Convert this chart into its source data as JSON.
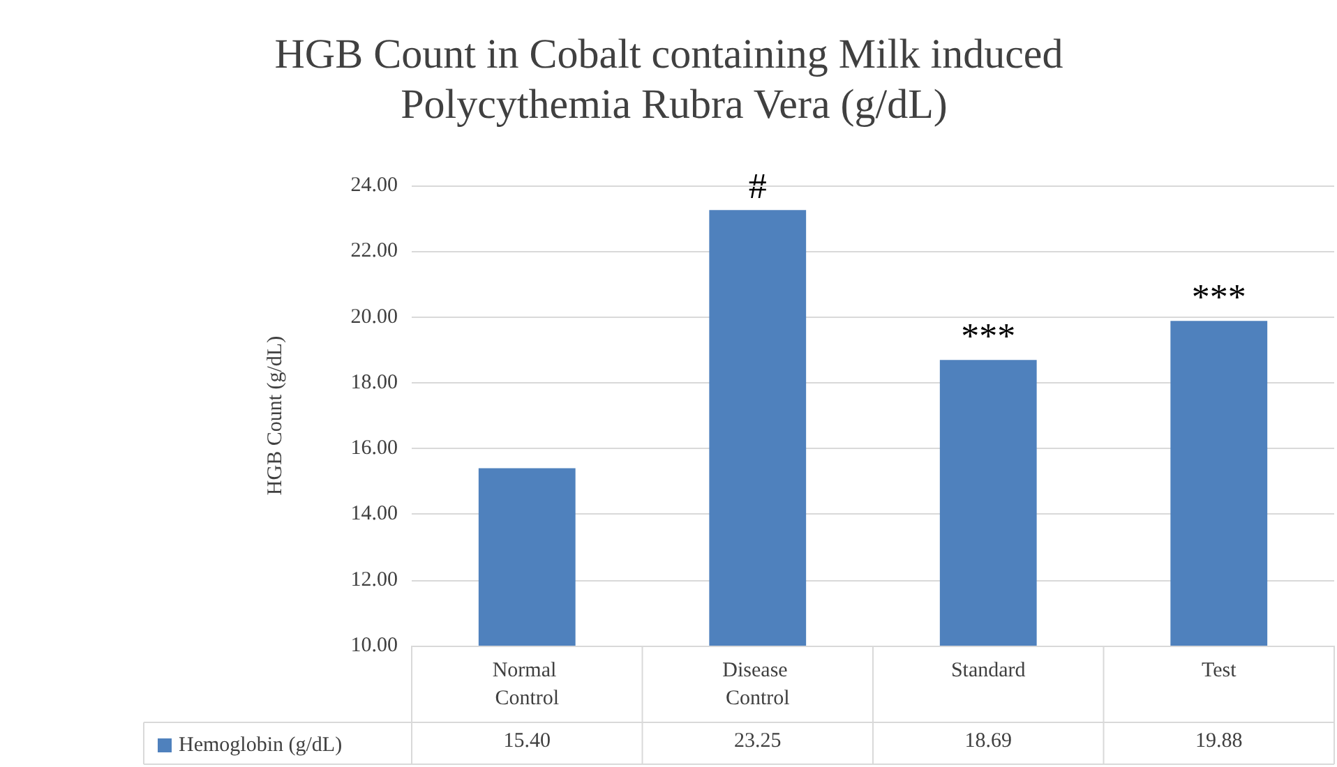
{
  "chart_data": {
    "type": "bar",
    "title": "HGB Count in Cobalt containing Milk induced Polycythemia Rubra Vera (g/dL)",
    "ylabel": "HGB Count (g/dL)",
    "categories": [
      "Normal Control",
      "Disease Control",
      "Standard",
      "Test"
    ],
    "series": [
      {
        "name": "Hemoglobin (g/dL)",
        "color": "#4f81bd",
        "values": [
          15.4,
          23.25,
          18.69,
          19.88
        ],
        "value_labels": [
          "15.40",
          "23.25",
          "18.69",
          "19.88"
        ]
      }
    ],
    "ylim": [
      10,
      24
    ],
    "yticks": [
      {
        "value": 10,
        "label": "10.00"
      },
      {
        "value": 12,
        "label": "12.00"
      },
      {
        "value": 14,
        "label": "14.00"
      },
      {
        "value": 16,
        "label": "16.00"
      },
      {
        "value": 18,
        "label": "18.00"
      },
      {
        "value": 20,
        "label": "20.00"
      },
      {
        "value": 22,
        "label": "22.00"
      },
      {
        "value": 24,
        "label": "24.00"
      }
    ],
    "annotations": [
      {
        "text": "#",
        "x": "Disease Control",
        "y": 23.25
      },
      {
        "text": "***",
        "x": "Standard",
        "y": 18.69
      },
      {
        "text": "***",
        "x": "Test",
        "y": 19.88
      }
    ],
    "grid": "y",
    "legend": "bottom left"
  }
}
